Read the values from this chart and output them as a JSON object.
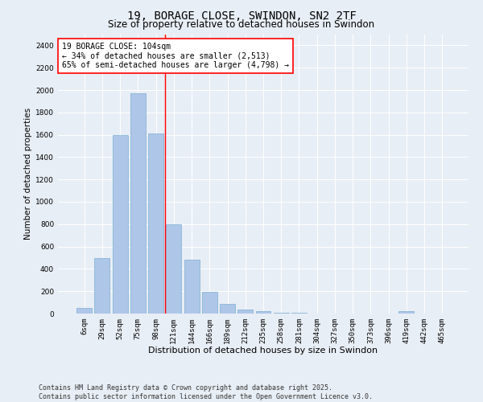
{
  "title": "19, BORAGE CLOSE, SWINDON, SN2 2TF",
  "subtitle": "Size of property relative to detached houses in Swindon",
  "xlabel": "Distribution of detached houses by size in Swindon",
  "ylabel": "Number of detached properties",
  "categories": [
    "6sqm",
    "29sqm",
    "52sqm",
    "75sqm",
    "98sqm",
    "121sqm",
    "144sqm",
    "166sqm",
    "189sqm",
    "212sqm",
    "235sqm",
    "258sqm",
    "281sqm",
    "304sqm",
    "327sqm",
    "350sqm",
    "373sqm",
    "396sqm",
    "419sqm",
    "442sqm",
    "465sqm"
  ],
  "values": [
    50,
    500,
    1600,
    1970,
    1610,
    800,
    480,
    195,
    85,
    35,
    22,
    10,
    5,
    3,
    2,
    1,
    0,
    0,
    20,
    0,
    0
  ],
  "bar_color": "#aec6e8",
  "bar_edge_color": "#7aafd4",
  "vline_x_index": 4,
  "vline_color": "red",
  "annotation_text": "19 BORAGE CLOSE: 104sqm\n← 34% of detached houses are smaller (2,513)\n65% of semi-detached houses are larger (4,798) →",
  "annotation_box_color": "white",
  "annotation_box_edge_color": "red",
  "ylim": [
    0,
    2500
  ],
  "yticks": [
    0,
    200,
    400,
    600,
    800,
    1000,
    1200,
    1400,
    1600,
    1800,
    2000,
    2200,
    2400
  ],
  "bg_color": "#e8eef5",
  "grid_color": "white",
  "footer": "Contains HM Land Registry data © Crown copyright and database right 2025.\nContains public sector information licensed under the Open Government Licence v3.0.",
  "title_fontsize": 10,
  "subtitle_fontsize": 8.5,
  "xlabel_fontsize": 8,
  "ylabel_fontsize": 7.5,
  "tick_fontsize": 6.5,
  "annotation_fontsize": 7,
  "footer_fontsize": 6
}
